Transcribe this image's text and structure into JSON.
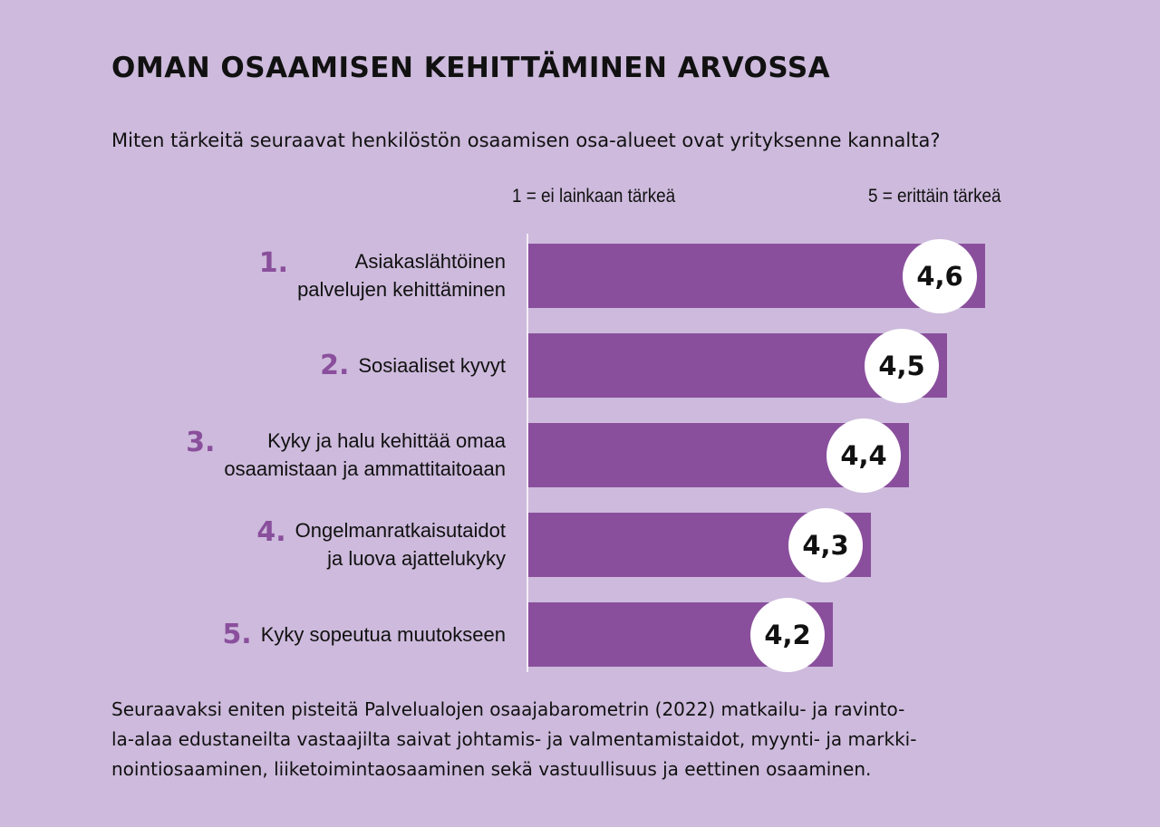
{
  "header": {
    "title": "OMAN OSAAMISEN KEHITTÄMINEN ARVOSSA",
    "question": "Miten tärkeitä seuraavat henkilöstön osaamisen osa-alueet ovat yrityksenne kannalta?"
  },
  "scale": {
    "min_label": "1 = ei lainkaan tärkeä",
    "max_label": "5 = erittäin tärkeä"
  },
  "chart_data": {
    "type": "bar",
    "orientation": "horizontal",
    "title": "",
    "xlabel": "",
    "ylabel": "",
    "xlim": [
      3.0,
      5.0
    ],
    "categories": [
      "Asiakaslähtöinen\npalvelujen kehittäminen",
      "Sosiaaliset kyvyt",
      "Kyky ja halu kehittää omaa\nosaamistaan  ja ammattitaitoaan",
      "Ongelmanratkaisutaidot\nja luova ajattelukyky",
      "Kyky sopeutua muutokseen"
    ],
    "ranks": [
      "1.",
      "2.",
      "3.",
      "4.",
      "5."
    ],
    "values": [
      4.6,
      4.5,
      4.4,
      4.3,
      4.2
    ],
    "value_labels": [
      "4,6",
      "4,5",
      "4,4",
      "4,3",
      "4,2"
    ],
    "grid": false,
    "colors": {
      "bar": "#8a4f9c",
      "rank": "#8a4f9c",
      "badge": "#ffffff",
      "background": "#cdbadc"
    }
  },
  "footnote": "Seuraavaksi eniten pisteitä Palvelualojen osaajabarometrin (2022) matkailu- ja ravinto-\nla-alaa edustaneilta vastaajilta saivat johtamis- ja valmentamistaidot, myynti- ja markki-\nnointiosaaminen, liiketoimintaosaaminen sekä vastuullisuus ja eettinen osaaminen."
}
